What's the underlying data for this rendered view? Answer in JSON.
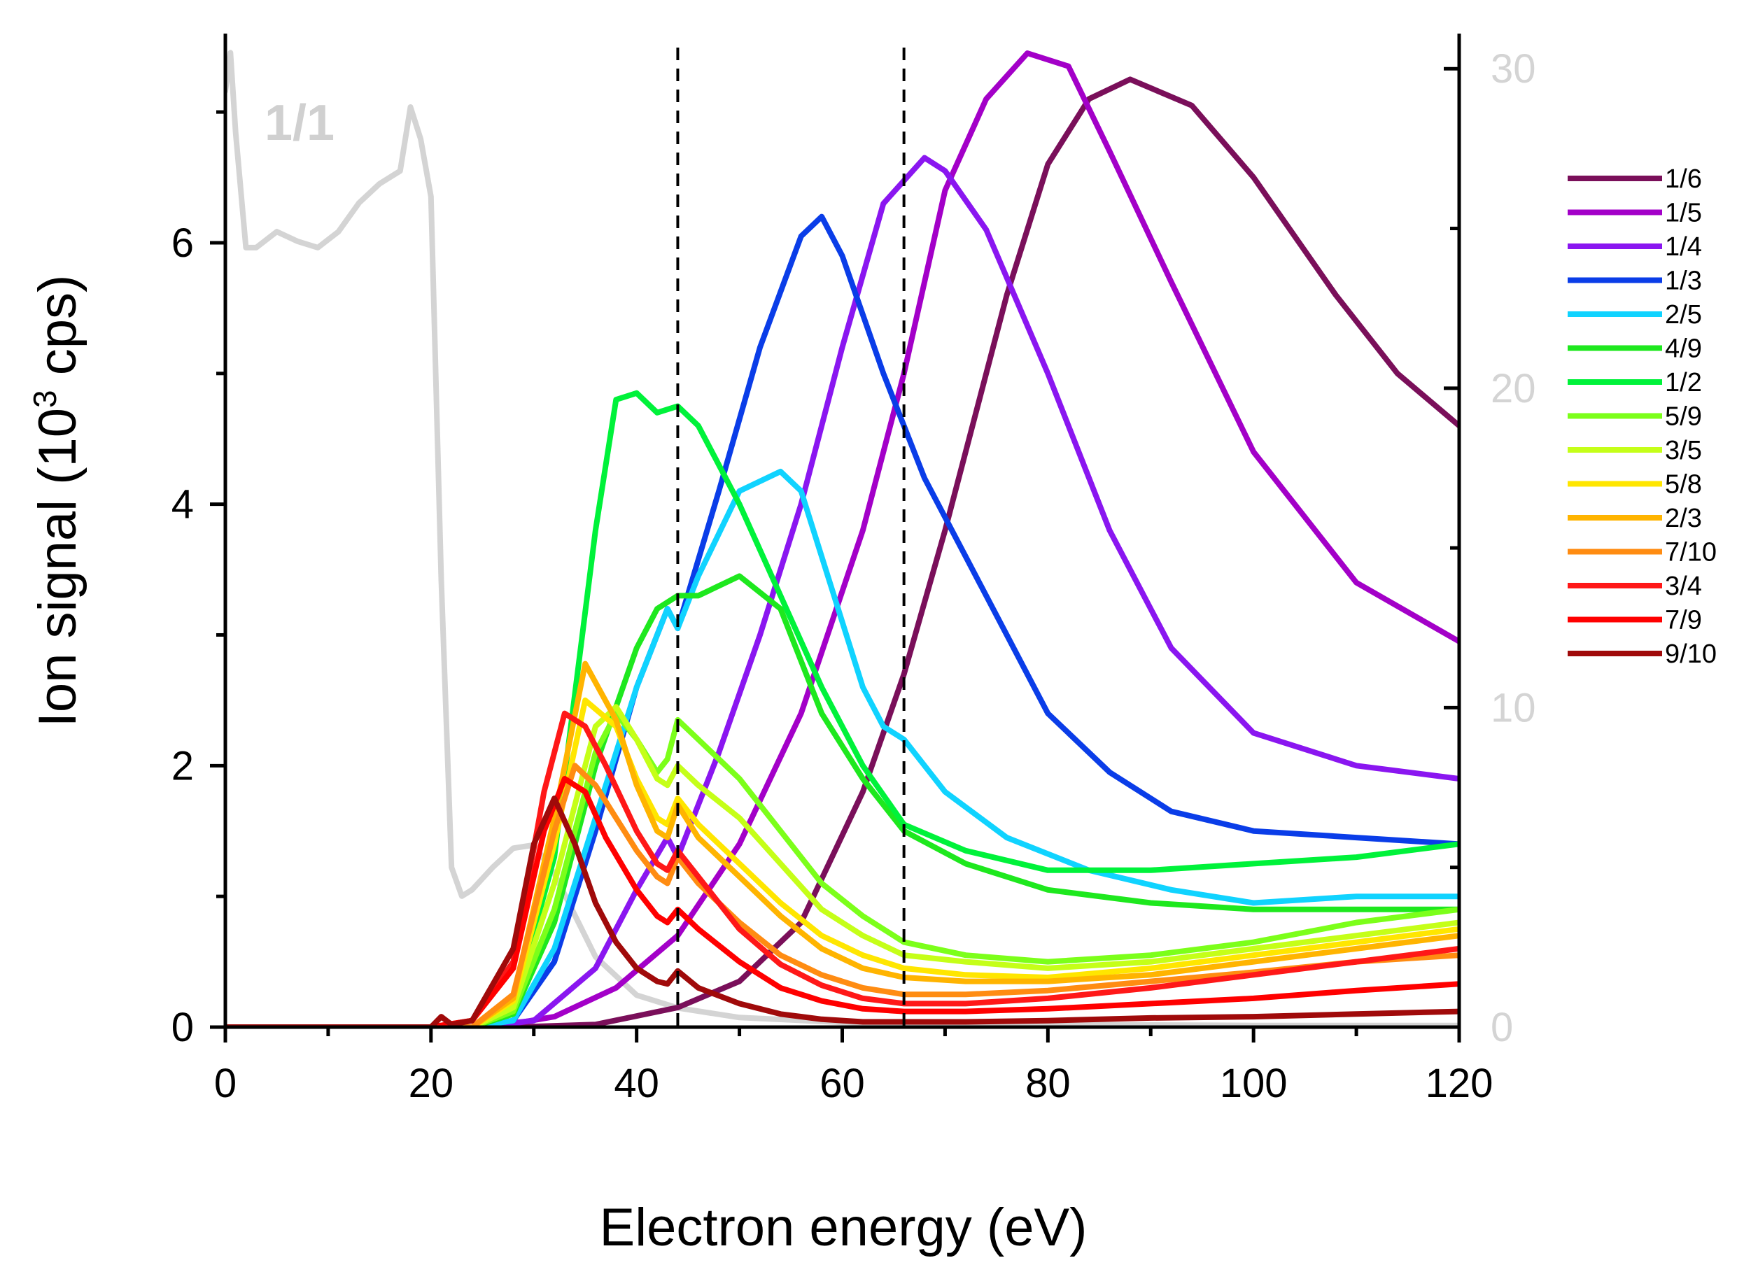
{
  "chart_data": {
    "type": "line",
    "title": "",
    "xlabel": "Electron energy (eV)",
    "ylabel_main": "Ion signal (10",
    "ylabel_sup": "3",
    "ylabel_end": " cps)",
    "xlim": [
      0,
      120
    ],
    "ylim": [
      0,
      7.6
    ],
    "ylim_right": [
      0,
      31.1
    ],
    "x_ticks": [
      0,
      20,
      40,
      60,
      80,
      100,
      120
    ],
    "x_tick_labels": [
      "0",
      "20",
      "40",
      "60",
      "80",
      "100",
      "120"
    ],
    "y_ticks": [
      0,
      2,
      4,
      6
    ],
    "y_tick_labels": [
      "0",
      "2",
      "4",
      "6"
    ],
    "y_right_ticks": [
      0,
      10,
      20,
      30
    ],
    "y_right_tick_labels": [
      "0",
      "10",
      "20",
      "30"
    ],
    "vlines": [
      44,
      66
    ],
    "annotation": "1/1",
    "legend_position": "right",
    "series": [
      {
        "name": "1/6",
        "color": "#7a0f5a",
        "x": [
          0,
          10,
          20,
          28,
          36,
          44,
          50,
          56,
          62,
          66,
          70,
          76,
          80,
          84,
          88,
          94,
          100,
          108,
          114,
          120
        ],
        "y": [
          0,
          0,
          0,
          0,
          0.02,
          0.15,
          0.35,
          0.8,
          1.8,
          2.7,
          3.8,
          5.6,
          6.6,
          7.1,
          7.25,
          7.05,
          6.5,
          5.6,
          5.0,
          4.6
        ]
      },
      {
        "name": "1/5",
        "color": "#a300c8",
        "x": [
          0,
          10,
          20,
          26,
          32,
          38,
          44,
          50,
          56,
          62,
          66,
          70,
          74,
          78,
          82,
          86,
          92,
          100,
          110,
          120
        ],
        "y": [
          0,
          0,
          0,
          0,
          0.08,
          0.3,
          0.7,
          1.4,
          2.4,
          3.8,
          5.0,
          6.4,
          7.1,
          7.45,
          7.35,
          6.7,
          5.7,
          4.4,
          3.4,
          2.95
        ]
      },
      {
        "name": "1/4",
        "color": "#8a16f0",
        "x": [
          0,
          10,
          20,
          24,
          30,
          36,
          40,
          43,
          44,
          48,
          52,
          56,
          60,
          64,
          68,
          70,
          74,
          80,
          86,
          92,
          100,
          110,
          120
        ],
        "y": [
          0,
          0,
          0,
          0,
          0.05,
          0.45,
          1.05,
          1.45,
          1.3,
          2.1,
          3.0,
          4.0,
          5.2,
          6.3,
          6.65,
          6.55,
          6.1,
          5.0,
          3.8,
          2.9,
          2.25,
          2.0,
          1.9
        ]
      },
      {
        "name": "1/3",
        "color": "#0a3de8",
        "x": [
          0,
          10,
          20,
          24,
          28,
          32,
          36,
          40,
          43,
          44,
          48,
          52,
          56,
          58,
          60,
          64,
          68,
          72,
          76,
          80,
          86,
          92,
          100,
          110,
          120
        ],
        "y": [
          0,
          0,
          0,
          0,
          0.05,
          0.5,
          1.5,
          2.6,
          3.2,
          3.05,
          4.1,
          5.2,
          6.05,
          6.2,
          5.9,
          5.0,
          4.2,
          3.6,
          3.0,
          2.4,
          1.95,
          1.65,
          1.5,
          1.45,
          1.4
        ]
      },
      {
        "name": "2/5",
        "color": "#10d3ff",
        "x": [
          0,
          10,
          20,
          24,
          28,
          32,
          36,
          40,
          43,
          44,
          46,
          50,
          54,
          56,
          58,
          62,
          64,
          66,
          70,
          76,
          84,
          92,
          100,
          110,
          120
        ],
        "y": [
          0,
          0,
          0,
          0,
          0.05,
          0.6,
          1.6,
          2.6,
          3.2,
          3.05,
          3.45,
          4.1,
          4.25,
          4.1,
          3.6,
          2.6,
          2.3,
          2.2,
          1.8,
          1.45,
          1.2,
          1.05,
          0.95,
          1.0,
          1.0
        ]
      },
      {
        "name": "4/9",
        "color": "#1ee81e",
        "x": [
          0,
          10,
          20,
          24,
          28,
          32,
          36,
          40,
          42,
          44,
          46,
          50,
          54,
          58,
          62,
          66,
          72,
          80,
          90,
          100,
          110,
          120
        ],
        "y": [
          0,
          0,
          0,
          0,
          0.1,
          0.8,
          2.0,
          2.9,
          3.2,
          3.3,
          3.3,
          3.45,
          3.2,
          2.4,
          1.9,
          1.5,
          1.25,
          1.05,
          0.95,
          0.9,
          0.9,
          0.9
        ]
      },
      {
        "name": "1/2",
        "color": "#00f23a",
        "x": [
          0,
          10,
          20,
          24,
          28,
          32,
          36,
          38,
          40,
          42,
          44,
          46,
          50,
          54,
          58,
          62,
          66,
          72,
          80,
          90,
          100,
          110,
          120
        ],
        "y": [
          0,
          0,
          0,
          0,
          0.15,
          1.3,
          3.8,
          4.8,
          4.85,
          4.7,
          4.75,
          4.6,
          4.0,
          3.3,
          2.6,
          2.0,
          1.55,
          1.35,
          1.2,
          1.2,
          1.25,
          1.3,
          1.4
        ]
      },
      {
        "name": "5/9",
        "color": "#7cff1a",
        "x": [
          0,
          10,
          20,
          24,
          28,
          32,
          36,
          38,
          40,
          42,
          43,
          44,
          46,
          50,
          54,
          58,
          62,
          66,
          72,
          80,
          90,
          100,
          110,
          120
        ],
        "y": [
          0,
          0,
          0,
          0,
          0.12,
          0.9,
          2.1,
          2.4,
          2.2,
          1.95,
          2.05,
          2.35,
          2.2,
          1.9,
          1.5,
          1.1,
          0.85,
          0.65,
          0.55,
          0.5,
          0.55,
          0.65,
          0.8,
          0.9
        ]
      },
      {
        "name": "3/5",
        "color": "#c5ff18",
        "x": [
          0,
          10,
          20,
          24,
          28,
          32,
          36,
          38,
          40,
          42,
          43,
          44,
          46,
          50,
          54,
          58,
          62,
          66,
          72,
          80,
          90,
          100,
          110,
          120
        ],
        "y": [
          0,
          0,
          0,
          0,
          0.15,
          1.1,
          2.3,
          2.45,
          2.2,
          1.9,
          1.85,
          2.0,
          1.85,
          1.6,
          1.25,
          0.9,
          0.7,
          0.55,
          0.5,
          0.45,
          0.5,
          0.6,
          0.7,
          0.8
        ]
      },
      {
        "name": "5/8",
        "color": "#ffe600",
        "x": [
          0,
          10,
          20,
          24,
          28,
          32,
          35,
          38,
          40,
          42,
          43,
          44,
          46,
          50,
          54,
          58,
          62,
          66,
          72,
          80,
          90,
          100,
          110,
          120
        ],
        "y": [
          0,
          0,
          0,
          0,
          0.2,
          1.4,
          2.5,
          2.3,
          1.9,
          1.6,
          1.55,
          1.75,
          1.55,
          1.25,
          0.95,
          0.7,
          0.55,
          0.45,
          0.4,
          0.38,
          0.45,
          0.55,
          0.65,
          0.75
        ]
      },
      {
        "name": "2/3",
        "color": "#ffb400",
        "x": [
          0,
          10,
          20,
          24,
          28,
          32,
          35,
          38,
          40,
          42,
          43,
          44,
          46,
          50,
          54,
          58,
          62,
          66,
          72,
          80,
          90,
          100,
          110,
          120
        ],
        "y": [
          0,
          0,
          0,
          0,
          0.22,
          1.6,
          2.78,
          2.35,
          1.85,
          1.5,
          1.45,
          1.7,
          1.45,
          1.15,
          0.85,
          0.6,
          0.45,
          0.38,
          0.35,
          0.35,
          0.4,
          0.5,
          0.6,
          0.7
        ]
      },
      {
        "name": "7/10",
        "color": "#ff8c12",
        "x": [
          0,
          10,
          20,
          24,
          28,
          32,
          34,
          36,
          38,
          40,
          42,
          43,
          44,
          46,
          50,
          54,
          58,
          62,
          66,
          72,
          80,
          90,
          100,
          110,
          120
        ],
        "y": [
          0,
          0,
          0,
          0,
          0.25,
          1.5,
          2.0,
          1.85,
          1.6,
          1.35,
          1.15,
          1.1,
          1.3,
          1.1,
          0.8,
          0.55,
          0.4,
          0.3,
          0.25,
          0.25,
          0.28,
          0.35,
          0.42,
          0.5,
          0.55
        ]
      },
      {
        "name": "3/4",
        "color": "#ff1818",
        "x": [
          0,
          10,
          20,
          24,
          28,
          31,
          33,
          35,
          37,
          40,
          42,
          43,
          44,
          46,
          50,
          54,
          58,
          62,
          66,
          72,
          80,
          90,
          100,
          110,
          120
        ],
        "y": [
          0,
          0,
          0,
          0.05,
          0.5,
          1.8,
          2.4,
          2.3,
          2.0,
          1.5,
          1.25,
          1.2,
          1.35,
          1.15,
          0.75,
          0.48,
          0.32,
          0.22,
          0.18,
          0.18,
          0.22,
          0.3,
          0.4,
          0.5,
          0.6
        ]
      },
      {
        "name": "7/9",
        "color": "#ff0000",
        "x": [
          0,
          10,
          20,
          24,
          28,
          31,
          33,
          35,
          37,
          40,
          42,
          43,
          44,
          46,
          50,
          54,
          58,
          62,
          66,
          72,
          80,
          90,
          100,
          110,
          120
        ],
        "y": [
          0,
          0,
          0,
          0.05,
          0.45,
          1.5,
          1.9,
          1.8,
          1.45,
          1.05,
          0.85,
          0.8,
          0.9,
          0.75,
          0.5,
          0.3,
          0.2,
          0.14,
          0.12,
          0.12,
          0.14,
          0.18,
          0.22,
          0.28,
          0.33
        ]
      },
      {
        "name": "9/10",
        "color": "#a00a0a",
        "x": [
          0,
          10,
          20,
          21,
          22,
          24,
          28,
          30,
          32,
          34,
          36,
          38,
          40,
          42,
          43,
          44,
          46,
          50,
          54,
          58,
          62,
          66,
          72,
          80,
          90,
          100,
          110,
          120
        ],
        "y": [
          0,
          0,
          0,
          0.08,
          0.02,
          0.05,
          0.6,
          1.4,
          1.75,
          1.4,
          0.95,
          0.65,
          0.45,
          0.35,
          0.33,
          0.43,
          0.3,
          0.18,
          0.1,
          0.06,
          0.04,
          0.04,
          0.04,
          0.05,
          0.07,
          0.08,
          0.1,
          0.12
        ]
      },
      {
        "name": "1/1",
        "color": "#d4d4d4",
        "axis": "right",
        "x": [
          0,
          0.5,
          1,
          2,
          3,
          5,
          7,
          9,
          11,
          13,
          15,
          17,
          18,
          19,
          20,
          21,
          22,
          23,
          24,
          26,
          28,
          30,
          32,
          34,
          36,
          40,
          44,
          50,
          60,
          70,
          80,
          100,
          120
        ],
        "y": [
          29.3,
          30.5,
          28.0,
          24.4,
          24.4,
          24.9,
          24.6,
          24.4,
          24.9,
          25.8,
          26.4,
          26.8,
          28.8,
          27.8,
          26.0,
          14.0,
          5.0,
          4.1,
          4.3,
          5.0,
          5.6,
          5.7,
          4.8,
          3.5,
          2.2,
          1.0,
          0.6,
          0.3,
          0.15,
          0.1,
          0.08,
          0.05,
          0.05
        ]
      }
    ]
  }
}
